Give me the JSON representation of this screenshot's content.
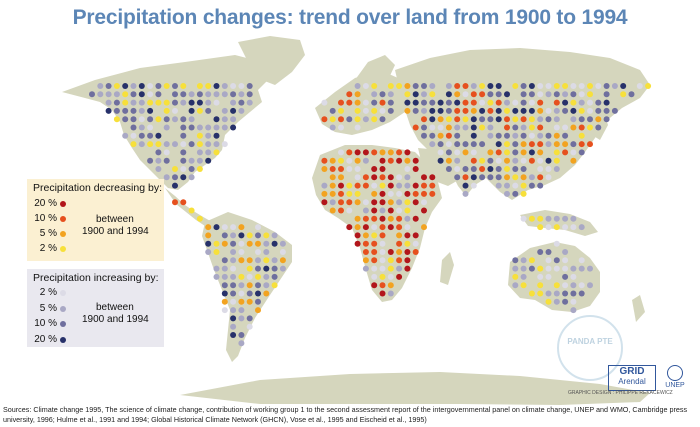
{
  "title": "Precipitation changes: trend over land from 1900 to 1994",
  "legend": {
    "decreasing": {
      "heading": "Precipitation decreasing by:",
      "items": [
        {
          "label": "20 %",
          "color": "#b2161b"
        },
        {
          "label": "10 %",
          "color": "#e6501e"
        },
        {
          "label": "5 %",
          "color": "#f2a320"
        },
        {
          "label": "2 %",
          "color": "#f7e03a"
        }
      ],
      "between_line1": "between",
      "between_line2": "1900 and 1994"
    },
    "increasing": {
      "heading": "Precipitation increasing by:",
      "items": [
        {
          "label": "2 %",
          "color": "#dcdbe6"
        },
        {
          "label": "5 %",
          "color": "#a9a8c5"
        },
        {
          "label": "10 %",
          "color": "#6f6f9e"
        },
        {
          "label": "20 %",
          "color": "#27316a"
        }
      ],
      "between_line1": "between",
      "between_line2": "1900 and 1994"
    }
  },
  "logos": {
    "grid_main": "GRID",
    "grid_sub": "Arendal",
    "unep": "UNEP",
    "credit": "GRAPHIC DESIGN : PHILIPPE REKACEWICZ",
    "stamp": "PANDA PTE"
  },
  "sources": "Sources: Climate change 1995, The science of climate change, contribution of working group 1 to the second assessment report of the intergovernmental panel on climate change, UNEP and WMO, Cambridge press university,  1996;  Hulme et al., 1991 and 1994; Global Historical Climate Network (GHCN), Vose et al., 1995 and Eischeid et al., 1995)",
  "colors": {
    "land": "#d5d6bd",
    "ocean": "#ffffff",
    "title": "#5c86b6"
  }
}
